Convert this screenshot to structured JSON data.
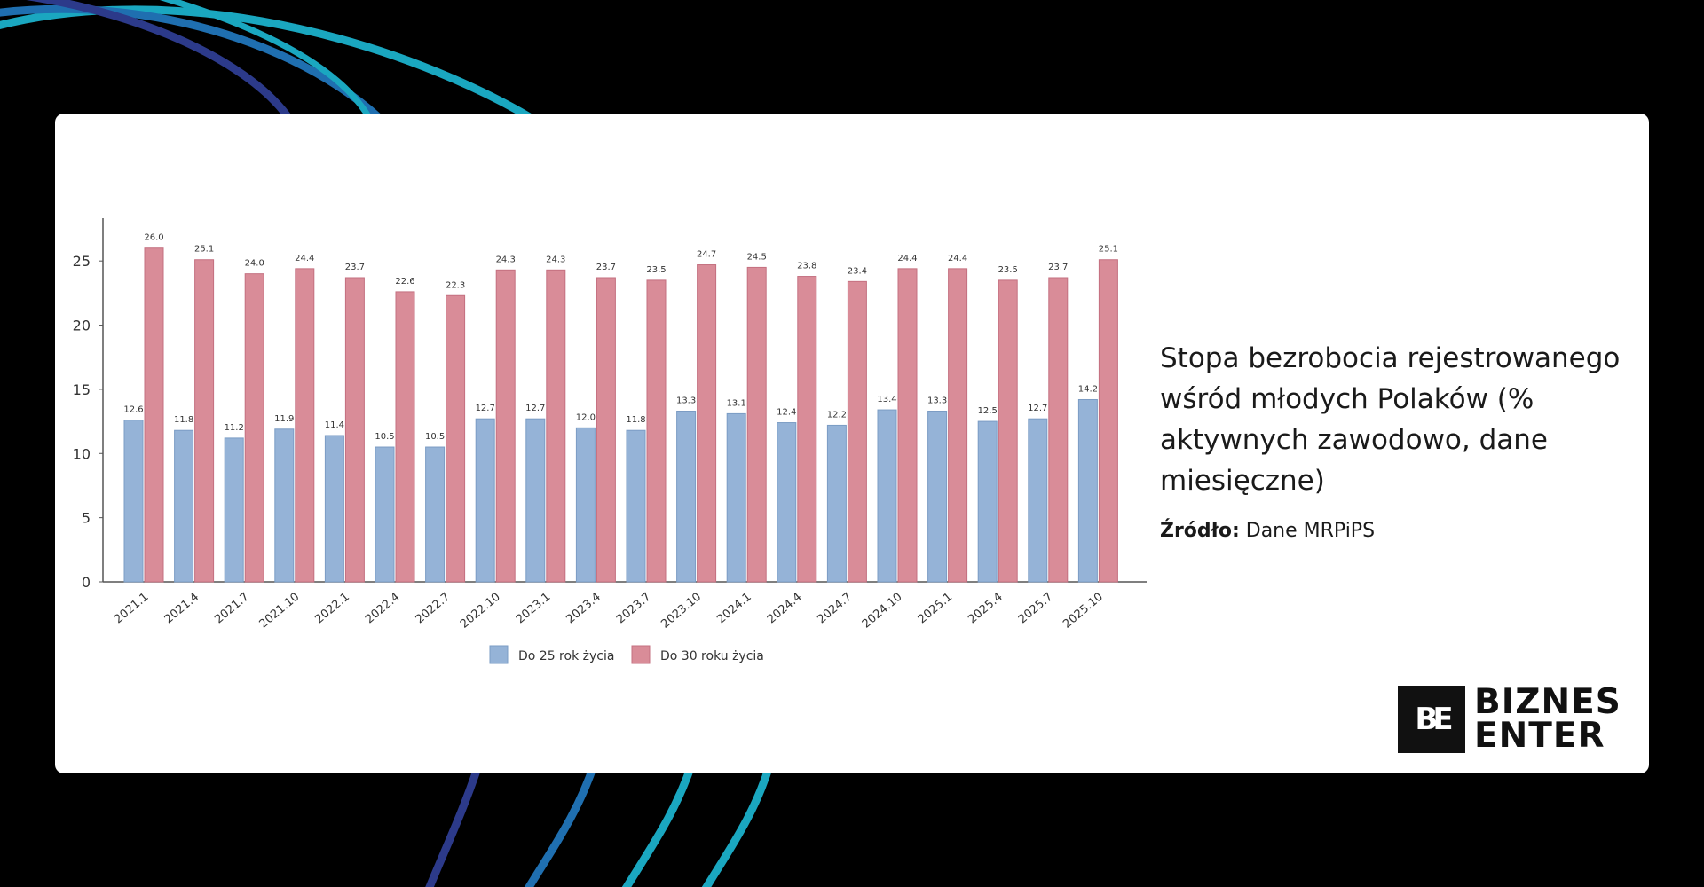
{
  "chart_data": {
    "type": "bar",
    "title": "",
    "xlabel": "",
    "ylabel": "",
    "ylim": [
      0,
      27.5
    ],
    "yticks": [
      0,
      5,
      10,
      15,
      20,
      25
    ],
    "categories": [
      "2021.1",
      "2021.4",
      "2021.7",
      "2021.10",
      "2022.1",
      "2022.4",
      "2022.7",
      "2022.10",
      "2023.1",
      "2023.4",
      "2023.7",
      "2023.10",
      "2024.1",
      "2024.4",
      "2024.7",
      "2024.10",
      "2025.1",
      "2025.4",
      "2025.7",
      "2025.10"
    ],
    "series": [
      {
        "name": "Do 25 rok życia",
        "color": "#95b3d7",
        "values": [
          12.6,
          11.8,
          11.2,
          11.9,
          11.4,
          10.5,
          10.5,
          12.7,
          12.7,
          12.0,
          11.8,
          13.3,
          13.1,
          12.4,
          12.2,
          13.4,
          13.3,
          12.5,
          12.7,
          14.2
        ],
        "labels": [
          "12.6",
          "11.8",
          "11.2",
          "11.9",
          "11.4",
          "10.5",
          "10.5",
          "12.7",
          "12.7",
          "12.0",
          "11.8",
          "13.3",
          "13.1",
          "12.4",
          "12.2",
          "13.4",
          "13.3",
          "12.5",
          "12.7",
          "14.2"
        ]
      },
      {
        "name": "Do 30 roku życia",
        "color": "#d98c98",
        "values": [
          26.0,
          25.1,
          24.0,
          24.4,
          23.7,
          22.6,
          22.3,
          24.3,
          24.3,
          23.7,
          23.5,
          24.7,
          24.5,
          23.8,
          23.4,
          24.4,
          24.4,
          23.5,
          23.7,
          25.1
        ],
        "labels": [
          "26.0",
          "25.1",
          "24.0",
          "24.4",
          "23.7",
          "22.6",
          "22.3",
          "24.3",
          "24.3",
          "23.7",
          "23.5",
          "24.7",
          "24.5",
          "23.8",
          "23.4",
          "24.4",
          "24.4",
          "23.5",
          "23.7",
          "25.1"
        ]
      }
    ],
    "legend_position": "bottom",
    "grid": false
  },
  "caption": {
    "title": "Stopa bezrobocia rejestrowanego wśród młodych Polaków (% aktywnych zawodowo, dane miesięczne)",
    "source_label": "Źródło:",
    "source_value": "Dane MRPiPS"
  },
  "logo": {
    "mark": "BE",
    "line1": "BIZNES",
    "line2": "ENTER"
  },
  "colors": {
    "background": "#000000",
    "card": "#ffffff",
    "arc_dark": "#2c3a8a",
    "arc_mid": "#1f6fb0",
    "arc_light": "#1aa7c0"
  }
}
